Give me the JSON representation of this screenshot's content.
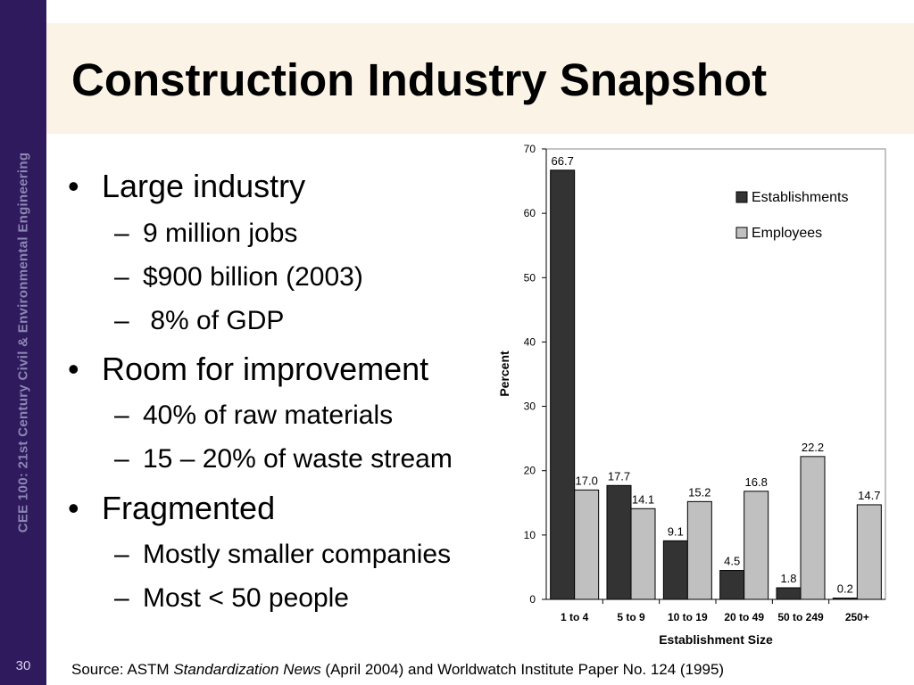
{
  "slide": {
    "side_label": "CEE 100: 21st Century Civil & Environmental Engineering",
    "number": "30",
    "title": "Construction Industry Snapshot"
  },
  "bullets": [
    {
      "text": "Large industry",
      "subs": [
        "9 million jobs",
        "$900 billion (2003)",
        " 8% of GDP"
      ]
    },
    {
      "text": "Room for improvement",
      "subs": [
        "40% of raw materials",
        "15 – 20% of waste stream"
      ]
    },
    {
      "text": "Fragmented",
      "subs": [
        "Mostly smaller companies",
        "Most < 50 people"
      ]
    }
  ],
  "source": {
    "prefix": "Source: ASTM ",
    "italic": "Standardization News",
    "suffix": " (April 2004) and Worldwatch Institute Paper No. 124 (1995)"
  },
  "chart_data": {
    "type": "bar",
    "categories": [
      "1 to 4",
      "5 to 9",
      "10 to 19",
      "20 to 49",
      "50 to 249",
      "250+"
    ],
    "series": [
      {
        "name": "Establishments",
        "values": [
          66.7,
          17.7,
          9.1,
          4.5,
          1.8,
          0.2
        ],
        "labels": [
          "66.7",
          "17.7",
          "9.1",
          "4.5",
          "1.8",
          "0.2"
        ],
        "color": "#333333"
      },
      {
        "name": "Employees",
        "values": [
          17.0,
          14.1,
          15.2,
          16.8,
          22.2,
          14.7
        ],
        "labels": [
          "17.0",
          "14.1",
          "15.2",
          "16.8",
          "22.2",
          "14.7"
        ],
        "color": "#c0c0c0"
      }
    ],
    "xlabel": "Establishment Size",
    "ylabel": "Percent",
    "ylim": [
      0,
      70
    ],
    "yticks": [
      0,
      10,
      20,
      30,
      40,
      50,
      60,
      70
    ],
    "grid": false,
    "legend": "top-right"
  }
}
